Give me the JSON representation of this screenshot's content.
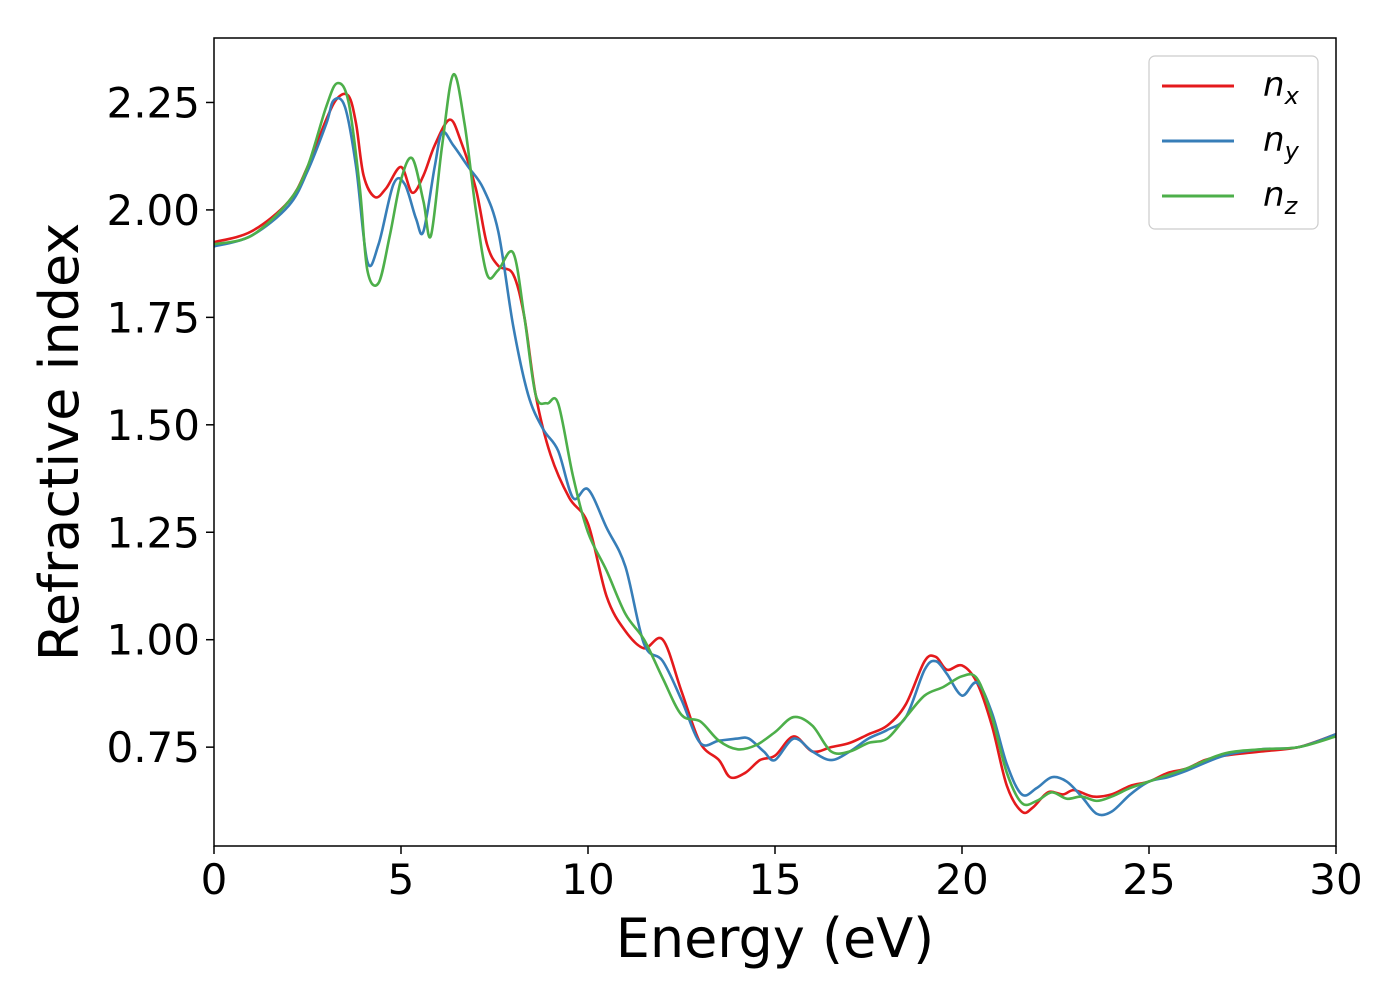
{
  "chart_data": {
    "type": "line",
    "xlabel": "Energy (eV)",
    "ylabel": "Refractive index",
    "xlim": [
      0,
      30
    ],
    "ylim": [
      0.52,
      2.4
    ],
    "xticks": [
      0,
      5,
      10,
      15,
      20,
      25,
      30
    ],
    "yticks": [
      0.75,
      1.0,
      1.25,
      1.5,
      1.75,
      2.0,
      2.25
    ],
    "ytick_labels": [
      "0.75",
      "1.00",
      "1.25",
      "1.50",
      "1.75",
      "2.00",
      "2.25"
    ],
    "grid": false,
    "legend_position": "top-right",
    "series": [
      {
        "name": "n_x",
        "label_main": "n",
        "label_sub": "x",
        "color": "#e41a1c",
        "x": [
          0,
          1,
          2,
          2.5,
          3,
          3.3,
          3.6,
          3.8,
          4.0,
          4.3,
          4.6,
          5.0,
          5.3,
          5.6,
          5.9,
          6.3,
          6.6,
          7.0,
          7.3,
          7.6,
          8.0,
          8.3,
          8.6,
          9.0,
          9.5,
          10.0,
          10.5,
          11.0,
          11.5,
          12.0,
          12.5,
          13.0,
          13.5,
          13.8,
          14.2,
          14.6,
          15.0,
          15.5,
          16.0,
          16.5,
          17.0,
          17.5,
          18.0,
          18.5,
          19.0,
          19.3,
          19.6,
          20.0,
          20.4,
          20.8,
          21.2,
          21.6,
          21.9,
          22.3,
          22.7,
          23.0,
          23.5,
          24.0,
          24.5,
          25.0,
          25.5,
          26.0,
          26.5,
          27.0,
          28.0,
          29.0,
          30.0
        ],
        "y": [
          1.925,
          1.95,
          2.02,
          2.1,
          2.21,
          2.26,
          2.265,
          2.2,
          2.08,
          2.03,
          2.05,
          2.1,
          2.04,
          2.08,
          2.15,
          2.21,
          2.16,
          2.05,
          1.92,
          1.87,
          1.85,
          1.75,
          1.57,
          1.43,
          1.33,
          1.27,
          1.1,
          1.02,
          0.98,
          1.0,
          0.88,
          0.76,
          0.72,
          0.68,
          0.69,
          0.72,
          0.73,
          0.775,
          0.74,
          0.75,
          0.76,
          0.78,
          0.8,
          0.85,
          0.95,
          0.96,
          0.93,
          0.94,
          0.9,
          0.8,
          0.66,
          0.6,
          0.61,
          0.645,
          0.64,
          0.65,
          0.635,
          0.64,
          0.66,
          0.67,
          0.69,
          0.7,
          0.72,
          0.73,
          0.74,
          0.75,
          0.78
        ]
      },
      {
        "name": "n_y",
        "label_main": "n",
        "label_sub": "y",
        "color": "#377eb8",
        "x": [
          0,
          1,
          2,
          2.5,
          3,
          3.2,
          3.5,
          3.8,
          4.1,
          4.4,
          4.8,
          5.1,
          5.4,
          5.6,
          5.9,
          6.1,
          6.4,
          6.8,
          7.2,
          7.6,
          8.0,
          8.4,
          8.8,
          9.2,
          9.6,
          10.0,
          10.5,
          11.0,
          11.5,
          12.0,
          12.5,
          13.0,
          13.5,
          14.0,
          14.3,
          14.7,
          15.0,
          15.5,
          16.0,
          16.5,
          17.0,
          17.5,
          18.0,
          18.5,
          19.0,
          19.3,
          19.6,
          20.0,
          20.4,
          20.8,
          21.2,
          21.6,
          22.0,
          22.4,
          22.8,
          23.2,
          23.6,
          24.0,
          24.5,
          25.0,
          25.5,
          26.0,
          27.0,
          28.0,
          29.0,
          30.0
        ],
        "y": [
          1.915,
          1.94,
          2.01,
          2.09,
          2.2,
          2.255,
          2.24,
          2.1,
          1.88,
          1.92,
          2.06,
          2.06,
          1.98,
          1.95,
          2.1,
          2.18,
          2.15,
          2.1,
          2.05,
          1.95,
          1.73,
          1.57,
          1.49,
          1.44,
          1.33,
          1.35,
          1.26,
          1.17,
          0.99,
          0.95,
          0.86,
          0.76,
          0.765,
          0.77,
          0.77,
          0.74,
          0.72,
          0.77,
          0.74,
          0.72,
          0.74,
          0.77,
          0.79,
          0.82,
          0.93,
          0.95,
          0.92,
          0.87,
          0.9,
          0.83,
          0.71,
          0.64,
          0.655,
          0.68,
          0.67,
          0.635,
          0.595,
          0.6,
          0.64,
          0.67,
          0.68,
          0.695,
          0.73,
          0.745,
          0.75,
          0.78
        ]
      },
      {
        "name": "n_z",
        "label_main": "n",
        "label_sub": "z",
        "color": "#4daf4a",
        "x": [
          0,
          1,
          2,
          2.5,
          3,
          3.3,
          3.6,
          3.9,
          4.1,
          4.4,
          4.7,
          5.0,
          5.3,
          5.6,
          5.8,
          6.1,
          6.4,
          6.7,
          7.0,
          7.3,
          7.6,
          8.0,
          8.3,
          8.6,
          8.9,
          9.2,
          9.6,
          10.0,
          10.5,
          11.0,
          11.5,
          12.0,
          12.5,
          13.0,
          13.5,
          14.0,
          14.5,
          15.0,
          15.5,
          16.0,
          16.5,
          17.0,
          17.5,
          18.0,
          18.5,
          19.0,
          19.5,
          20.0,
          20.4,
          20.8,
          21.2,
          21.6,
          22.0,
          22.4,
          22.8,
          23.2,
          23.6,
          24.0,
          24.5,
          25.0,
          25.5,
          26.0,
          27.0,
          28.0,
          29.0,
          30.0
        ],
        "y": [
          1.92,
          1.94,
          2.02,
          2.1,
          2.24,
          2.295,
          2.25,
          2.05,
          1.86,
          1.83,
          1.94,
          2.07,
          2.12,
          2.02,
          1.94,
          2.15,
          2.315,
          2.2,
          2.0,
          1.85,
          1.86,
          1.9,
          1.75,
          1.57,
          1.55,
          1.55,
          1.38,
          1.25,
          1.16,
          1.06,
          1.0,
          0.91,
          0.825,
          0.81,
          0.765,
          0.745,
          0.755,
          0.785,
          0.82,
          0.8,
          0.74,
          0.74,
          0.76,
          0.77,
          0.82,
          0.87,
          0.89,
          0.915,
          0.91,
          0.82,
          0.69,
          0.62,
          0.625,
          0.645,
          0.63,
          0.635,
          0.625,
          0.635,
          0.655,
          0.67,
          0.685,
          0.7,
          0.735,
          0.745,
          0.75,
          0.775
        ]
      }
    ]
  }
}
